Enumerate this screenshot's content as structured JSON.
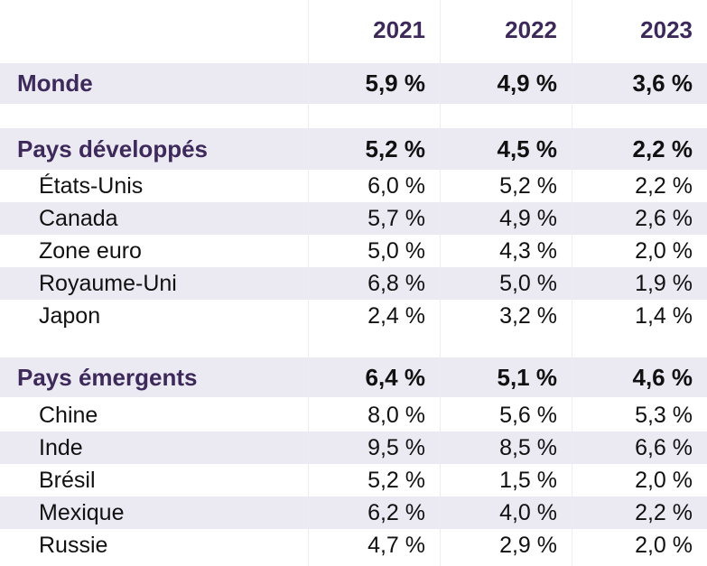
{
  "chart_data": {
    "type": "table",
    "columns": [
      "2021",
      "2022",
      "2023"
    ],
    "groups": [
      {
        "name": "Monde",
        "values": [
          "5,9 %",
          "4,9 %",
          "3,6 %"
        ],
        "rows": []
      },
      {
        "name": "Pays développés",
        "values": [
          "5,2 %",
          "4,5 %",
          "2,2 %"
        ],
        "rows": [
          {
            "name": "États-Unis",
            "values": [
              "6,0 %",
              "5,2 %",
              "2,2 %"
            ]
          },
          {
            "name": "Canada",
            "values": [
              "5,7 %",
              "4,9 %",
              "2,6 %"
            ]
          },
          {
            "name": "Zone euro",
            "values": [
              "5,0 %",
              "4,3 %",
              "2,0 %"
            ]
          },
          {
            "name": "Royaume-Uni",
            "values": [
              "6,8 %",
              "5,0 %",
              "1,9 %"
            ]
          },
          {
            "name": "Japon",
            "values": [
              "2,4 %",
              "3,2 %",
              "1,4 %"
            ]
          }
        ]
      },
      {
        "name": "Pays émergents",
        "values": [
          "6,4 %",
          "5,1 %",
          "4,6 %"
        ],
        "rows": [
          {
            "name": "Chine",
            "values": [
              "8,0 %",
              "5,6 %",
              "5,3 %"
            ]
          },
          {
            "name": "Inde",
            "values": [
              "9,5 %",
              "8,5 %",
              "6,6 %"
            ]
          },
          {
            "name": "Brésil",
            "values": [
              "5,2 %",
              "1,5 %",
              "2,0 %"
            ]
          },
          {
            "name": "Mexique",
            "values": [
              "6,2 %",
              "4,0 %",
              "2,2 %"
            ]
          },
          {
            "name": "Russie",
            "values": [
              "4,7 %",
              "2,9 %",
              "2,0 %"
            ]
          }
        ]
      }
    ]
  },
  "colors": {
    "header_text": "#3d2a5a",
    "band": "#ebe9f2",
    "text": "#111111"
  }
}
